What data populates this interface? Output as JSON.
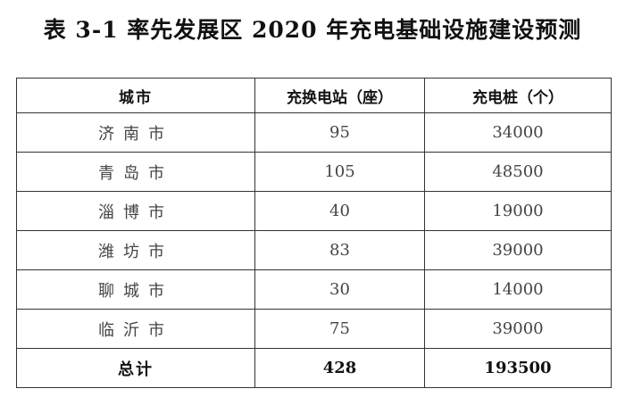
{
  "title": "表 3-1  率先发展区 2020 年充电基础设施建设预测",
  "table": {
    "headers": [
      "城市",
      "充换电站（座）",
      "充电桩（个）"
    ],
    "rows": [
      {
        "city": "济南市",
        "stations": "95",
        "piles": "34000"
      },
      {
        "city": "青岛市",
        "stations": "105",
        "piles": "48500"
      },
      {
        "city": "淄博市",
        "stations": "40",
        "piles": "19000"
      },
      {
        "city": "潍坊市",
        "stations": "83",
        "piles": "39000"
      },
      {
        "city": "聊城市",
        "stations": "30",
        "piles": "14000"
      },
      {
        "city": "临沂市",
        "stations": "75",
        "piles": "39000"
      }
    ],
    "total": {
      "label": "总计",
      "stations": "428",
      "piles": "193500"
    }
  }
}
